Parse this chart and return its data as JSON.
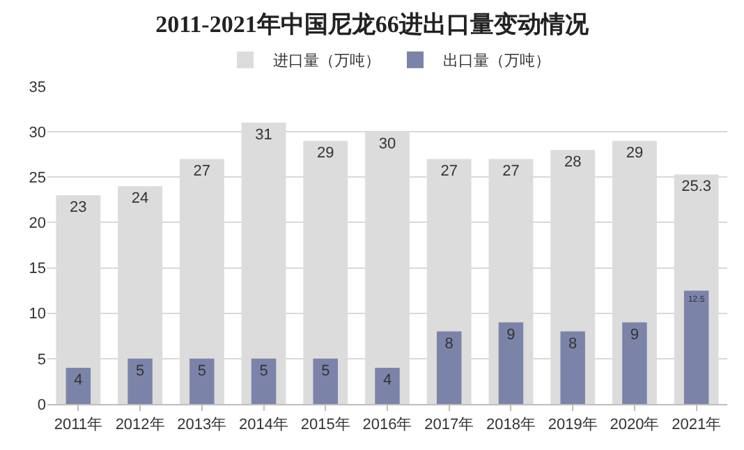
{
  "chart_data": {
    "type": "bar",
    "title": "2011-2021年中国尼龙66进出口量变动情况",
    "categories": [
      "2011年",
      "2012年",
      "2013年",
      "2014年",
      "2015年",
      "2016年",
      "2017年",
      "2018年",
      "2019年",
      "2020年",
      "2021年"
    ],
    "series": [
      {
        "name": "进口量（万吨）",
        "color": "#dcdcdc",
        "values": [
          23,
          24,
          27,
          31,
          29,
          30,
          27,
          27,
          28,
          29,
          25.3
        ]
      },
      {
        "name": "出口量（万吨）",
        "color": "#7b84a8",
        "values": [
          4,
          5,
          5,
          5,
          5,
          4,
          8,
          9,
          8,
          9,
          12.5
        ]
      }
    ],
    "ylim": [
      0,
      35
    ],
    "yticks": [
      0,
      5,
      10,
      15,
      20,
      25,
      30,
      35
    ],
    "grid": "y",
    "legend": "top",
    "data_labels": true
  }
}
